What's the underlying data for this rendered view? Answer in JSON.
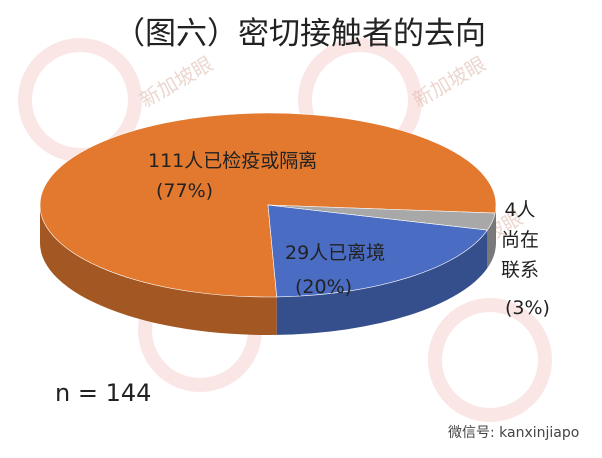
{
  "chart_data": {
    "type": "pie3d",
    "title": "（图六）密切接触者的去向",
    "categories": [
      "111人已检疫或隔离",
      "29人已离境",
      "4人尚在联系"
    ],
    "values": [
      77,
      20,
      3
    ],
    "value_labels": [
      "(77%)",
      "(20%)",
      "(3%)"
    ],
    "colors": [
      "#e2792f",
      "#4a6cc2",
      "#a8a8a8"
    ],
    "annotation": "n = 144",
    "watermark": "新加坡眼",
    "footer": "微信号: kanxinjiapo"
  }
}
